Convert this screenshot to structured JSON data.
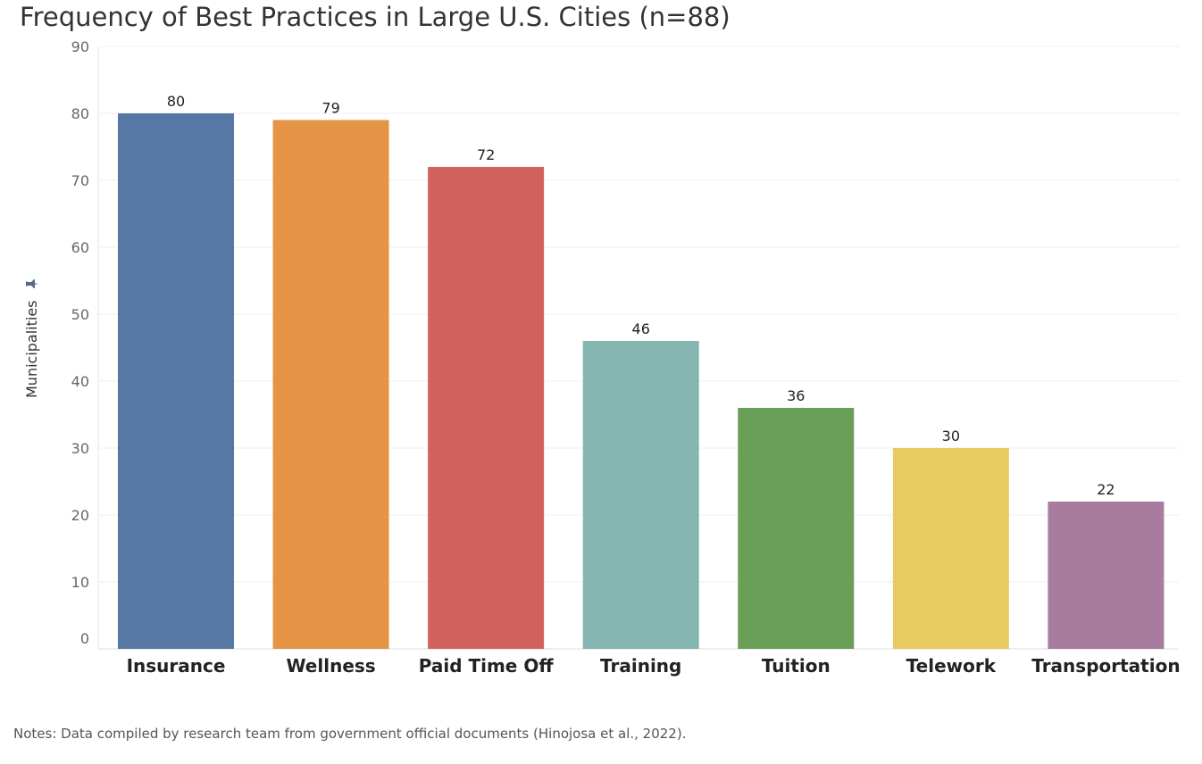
{
  "chart_data": {
    "type": "bar",
    "title": "Frequency of Best Practices in Large U.S. Cities (n=88)",
    "xlabel": "",
    "ylabel": "Municipalities",
    "ylim": [
      0,
      90
    ],
    "yticks": [
      "0",
      "10",
      "20",
      "30",
      "40",
      "50",
      "60",
      "70",
      "80",
      "90"
    ],
    "grid": true,
    "categories": [
      "Insurance",
      "Wellness",
      "Paid Time Off",
      "Training",
      "Tuition",
      "Telework",
      "Transportation"
    ],
    "values": [
      80,
      79,
      72,
      46,
      36,
      30,
      22
    ],
    "data_labels": [
      "80",
      "79",
      "72",
      "46",
      "36",
      "30",
      "22"
    ],
    "colors": [
      "#5778a4",
      "#e49444",
      "#d1615d",
      "#85b6b2",
      "#6a9f58",
      "#e7ca60",
      "#a87c9f"
    ]
  },
  "notes": "Notes: Data compiled by research team from government official documents (Hinojosa et al., 2022).",
  "icons": {
    "ylabel_icon": "pin-icon"
  }
}
